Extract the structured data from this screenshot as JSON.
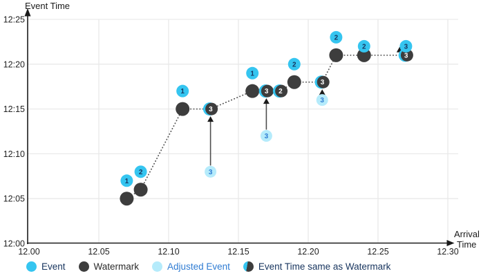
{
  "chart_data": {
    "type": "scatter",
    "title": "",
    "x_axis": {
      "label": "Arrival Time",
      "title_line1": "Arrival",
      "title_line2": "Time",
      "range": [
        "12.00",
        "12.30"
      ],
      "ticks": [
        {
          "label": "12.00",
          "min": 0
        },
        {
          "label": "12.05",
          "min": 5
        },
        {
          "label": "12.10",
          "min": 10
        },
        {
          "label": "12.15",
          "min": 15
        },
        {
          "label": "12.20",
          "min": 20
        },
        {
          "label": "12.25",
          "min": 25
        },
        {
          "label": "12.30",
          "min": 30
        }
      ]
    },
    "y_axis": {
      "title": "Event Time",
      "range": [
        "12:00",
        "12:25"
      ],
      "ticks": [
        {
          "label": "12:25",
          "min": 25
        },
        {
          "label": "12:20",
          "min": 20
        },
        {
          "label": "12:15",
          "min": 15
        },
        {
          "label": "12:10",
          "min": 10
        },
        {
          "label": "12:05",
          "min": 5
        },
        {
          "label": "12:00",
          "min": 0
        }
      ]
    },
    "events": [
      {
        "label": "1",
        "arrival": "12.07",
        "event_time": "12:07",
        "arrival_min": 7,
        "event_min": 7
      },
      {
        "label": "2",
        "arrival": "12.08",
        "event_time": "12:08",
        "arrival_min": 8,
        "event_min": 8
      },
      {
        "label": "1",
        "arrival": "12.11",
        "event_time": "12:17",
        "arrival_min": 11,
        "event_min": 17
      },
      {
        "label": "1",
        "arrival": "12.16",
        "event_time": "12:19",
        "arrival_min": 16,
        "event_min": 19
      },
      {
        "label": "2",
        "arrival": "12.19",
        "event_time": "12:20",
        "arrival_min": 19,
        "event_min": 20
      },
      {
        "label": "2",
        "arrival": "12.22",
        "event_time": "12:23",
        "arrival_min": 22,
        "event_min": 23
      },
      {
        "label": "2",
        "arrival": "12.24",
        "event_time": "12:22",
        "arrival_min": 24,
        "event_min": 22
      },
      {
        "label": "3",
        "arrival": "12.27",
        "event_time": "12:22",
        "arrival_min": 27,
        "event_min": 22
      }
    ],
    "watermarks": [
      {
        "arrival": "12.07",
        "value": "12:05",
        "arrival_min": 7,
        "event_min": 5
      },
      {
        "arrival": "12.08",
        "value": "12:06",
        "arrival_min": 8,
        "event_min": 6
      },
      {
        "arrival": "12.11",
        "value": "12:15",
        "arrival_min": 11,
        "event_min": 15
      },
      {
        "arrival": "12.16",
        "value": "12:17",
        "arrival_min": 16,
        "event_min": 17
      },
      {
        "arrival": "12.19",
        "value": "12:18",
        "arrival_min": 19,
        "event_min": 18
      },
      {
        "arrival": "12.22",
        "value": "12:21",
        "arrival_min": 22,
        "event_min": 21
      },
      {
        "arrival": "12.24",
        "value": "12:21",
        "arrival_min": 24,
        "event_min": 21
      }
    ],
    "same_as_watermark": [
      {
        "label": "3",
        "arrival": "12.13",
        "event_time": "12:15",
        "arrival_min": 13,
        "event_min": 15
      },
      {
        "label": "3",
        "arrival": "12.17",
        "event_time": "12:17",
        "arrival_min": 17,
        "event_min": 17
      },
      {
        "label": "2",
        "arrival": "12.18",
        "event_time": "12:17",
        "arrival_min": 18,
        "event_min": 17
      },
      {
        "label": "3",
        "arrival": "12.21",
        "event_time": "12:18",
        "arrival_min": 21,
        "event_min": 18
      },
      {
        "label": "3",
        "arrival": "12.27",
        "event_time": "12:21",
        "arrival_min": 27,
        "event_min": 21
      }
    ],
    "adjusted_events": [
      {
        "label": "3",
        "arrival": "12.13",
        "original_event_time": "12:08",
        "adjusted_to": "12:15",
        "arrival_min": 13,
        "event_min": 8,
        "adjusted_to_min": 15
      },
      {
        "label": "3",
        "arrival": "12.17",
        "original_event_time": "12:12",
        "adjusted_to": "12:17",
        "arrival_min": 17,
        "event_min": 12,
        "adjusted_to_min": 17
      },
      {
        "label": "3",
        "arrival": "12.21",
        "original_event_time": "12:16",
        "adjusted_to": "12:18",
        "arrival_min": 21,
        "event_min": 16,
        "adjusted_to_min": 18
      }
    ],
    "watermark_line": [
      [
        7,
        5
      ],
      [
        8,
        6
      ],
      [
        11,
        15
      ],
      [
        13,
        15
      ],
      [
        16,
        17
      ],
      [
        17,
        17
      ],
      [
        18,
        17
      ],
      [
        19,
        18
      ],
      [
        21,
        18
      ],
      [
        22,
        21
      ],
      [
        24,
        21
      ],
      [
        27,
        21
      ]
    ],
    "adjustment_arrows": [
      {
        "x_min": 13,
        "tail_min": 8,
        "tip_min": 15
      },
      {
        "x_min": 17,
        "tail_min": 12,
        "tip_min": 17
      },
      {
        "x_min": 21,
        "tail_min": 16,
        "tip_min": 18
      },
      {
        "x_min": 26.55,
        "tail_min": 21.0,
        "tip_min": 21.9,
        "free": true
      }
    ],
    "legend_position": "bottom",
    "grid": true
  },
  "legend": {
    "items": [
      {
        "label": "Event",
        "type": "event",
        "text_color": "#17345e"
      },
      {
        "label": "Watermark",
        "type": "watermark",
        "text_color": "#2b2b2b"
      },
      {
        "label": "Adjusted Event",
        "type": "adjusted",
        "text_color": "#2f7cd3"
      },
      {
        "label": "Event Time same as Watermark",
        "type": "same",
        "text_color": "#17345e"
      }
    ]
  },
  "colors": {
    "event": "#35c5f0",
    "watermark": "#3d3d3d",
    "adjusted": "#b5ebfb",
    "event_number": "#17345e",
    "adjusted_number": "#2f7cd3",
    "same_number": "#ffffff",
    "grid": "#e9e9e9",
    "axis": "#1a1a1a",
    "dotted_line": "#555555",
    "arrow": "#4d4d4d",
    "arrowhead": "#1a1a1a",
    "tick_text": "#222222"
  }
}
